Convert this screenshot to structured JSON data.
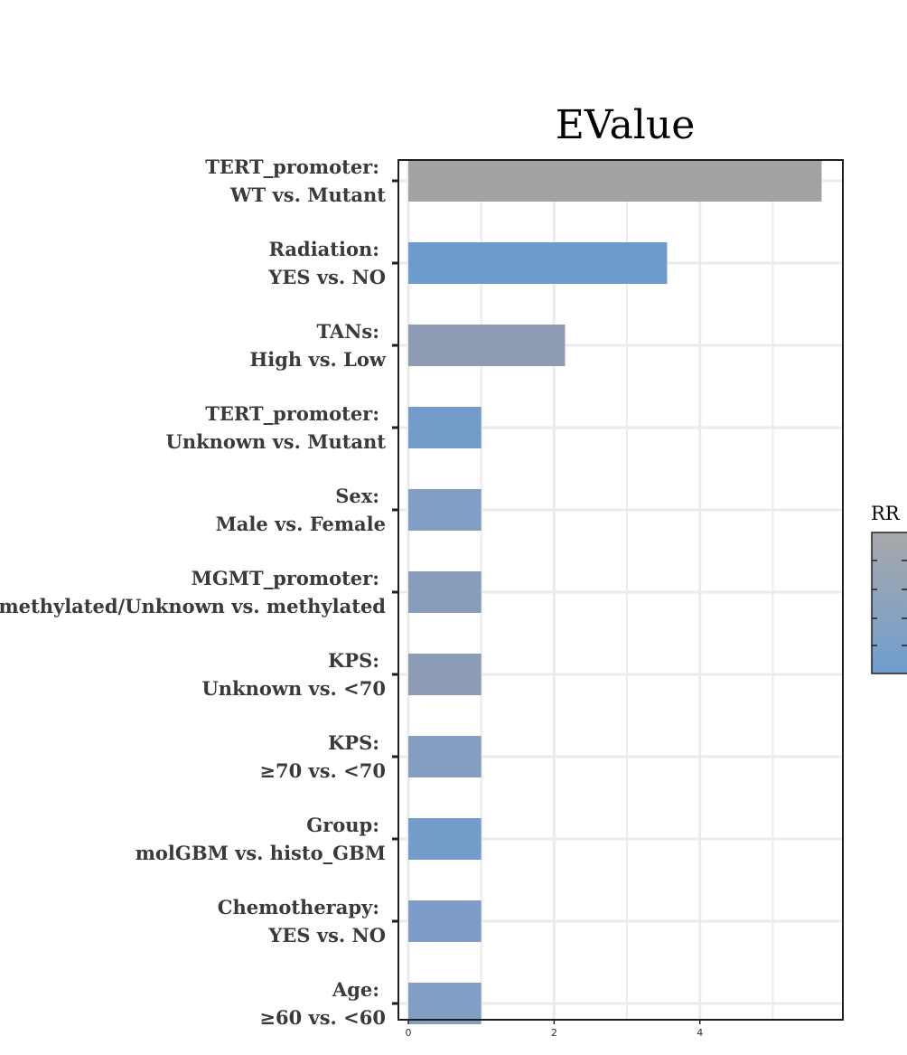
{
  "chart_data": {
    "type": "bar",
    "orientation": "horizontal",
    "title": "EValue",
    "xlabel": "",
    "ylabel": "",
    "xlim": [
      0,
      5.8
    ],
    "x_ticks": [
      "0",
      "2",
      "4"
    ],
    "grid": true,
    "categories": [
      {
        "line1": "TERT_promoter:",
        "line2": "WT vs. Mutant",
        "value": 5.67,
        "color": "#a3a3a6"
      },
      {
        "line1": "Radiation:",
        "line2": "YES vs. NO",
        "value": 3.55,
        "color": "#6c9bcc"
      },
      {
        "line1": "TANs:",
        "line2": "High vs. Low",
        "value": 2.15,
        "color": "#8e9bb3"
      },
      {
        "line1": "TERT_promoter:",
        "line2": "Unknown vs. Mutant",
        "value": 1.0,
        "color": "#739ccb"
      },
      {
        "line1": "Sex:",
        "line2": "Male vs. Female",
        "value": 1.0,
        "color": "#829ec4"
      },
      {
        "line1": "MGMT_promoter:",
        "line2": "un−methylated/Unknown vs. methylated",
        "value": 1.0,
        "color": "#889cbb"
      },
      {
        "line1": "KPS:",
        "line2": "Unknown vs. <70",
        "value": 1.0,
        "color": "#8c9bb6"
      },
      {
        "line1": "KPS:",
        "line2": "≥70 vs. <70",
        "value": 1.0,
        "color": "#849ec2"
      },
      {
        "line1": "Group:",
        "line2": "molGBM vs. histo_GBM",
        "value": 1.0,
        "color": "#739ccb"
      },
      {
        "line1": "Chemotherapy:",
        "line2": "YES vs. NO",
        "value": 1.0,
        "color": "#7d9dc7"
      },
      {
        "line1": "Age:",
        "line2": "≥60 vs. <60",
        "value": 1.0,
        "color": "#829ec4"
      }
    ],
    "legend": {
      "title": "RR",
      "placement": "right",
      "color_top": "#a8a8aa",
      "color_bottom": "#6f9ecf"
    }
  }
}
